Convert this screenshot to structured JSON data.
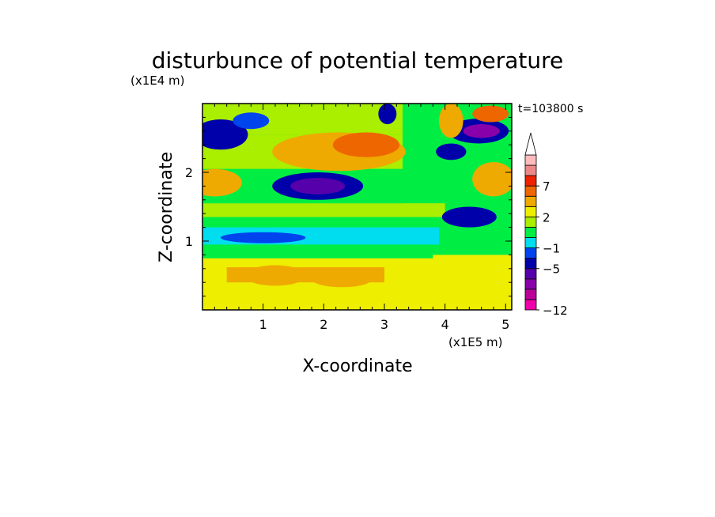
{
  "chart_data": {
    "type": "heatmap",
    "title": "disturbunce of potential temperature",
    "time_label": "t=103800 s",
    "xlabel": "X-coordinate",
    "ylabel": "Z-coordinate",
    "x_scale_label": "(x1E5 m)",
    "y_scale_label": "(x1E4 m)",
    "xlim": [
      0,
      5.1
    ],
    "ylim": [
      0,
      3.0
    ],
    "x_ticks": [
      1,
      2,
      3,
      4,
      5
    ],
    "y_ticks": [
      1,
      2
    ],
    "colorbar": {
      "levels": [
        -12,
        -10,
        -8,
        -6,
        -5,
        -3,
        -1,
        0,
        1,
        2,
        4,
        5,
        7,
        9,
        11
      ],
      "labels": [
        {
          "level": 7,
          "text": "7"
        },
        {
          "level": 2,
          "text": "2"
        },
        {
          "level": -1,
          "text": "−1"
        },
        {
          "level": -5,
          "text": "−5"
        },
        {
          "level": -12,
          "text": "−12"
        }
      ],
      "colors": [
        "#ee00aa",
        "#bb0099",
        "#8800aa",
        "#5500aa",
        "#0000aa",
        "#0044ee",
        "#00ddee",
        "#00ee44",
        "#aaee00",
        "#eeee00",
        "#eeaa00",
        "#ee6600",
        "#ee2200",
        "#ee8888",
        "#ffbbbb"
      ],
      "extend": "max"
    },
    "field": {
      "background_level": 0.5,
      "bands": [
        {
          "x": [
            0.0,
            5.1
          ],
          "z": [
            0.0,
            0.45
          ],
          "value": 2.2
        },
        {
          "x": [
            0.0,
            5.1
          ],
          "z": [
            0.35,
            0.8
          ],
          "value": 3.0
        },
        {
          "x": [
            0.4,
            3.0
          ],
          "z": [
            0.4,
            0.62
          ],
          "value": 4.2
        },
        {
          "x": [
            0.0,
            3.8
          ],
          "z": [
            0.75,
            0.95
          ],
          "value": 0.4
        },
        {
          "x": [
            0.0,
            3.9
          ],
          "z": [
            0.95,
            1.2
          ],
          "value": -0.5
        },
        {
          "x": [
            0.0,
            4.0
          ],
          "z": [
            1.35,
            1.55
          ],
          "value": 1.6
        },
        {
          "x": [
            0.0,
            3.3
          ],
          "z": [
            1.55,
            1.72
          ],
          "value": 0.8
        },
        {
          "x": [
            0.0,
            3.3
          ],
          "z": [
            2.05,
            2.55
          ],
          "value": 1.9
        },
        {
          "x": [
            0.0,
            3.3
          ],
          "z": [
            2.55,
            3.0
          ],
          "value": 1.7
        }
      ],
      "blobs": [
        {
          "x": 2.25,
          "z": 2.3,
          "rx": 1.1,
          "rz": 0.28,
          "value": 4.6
        },
        {
          "x": 2.7,
          "z": 2.4,
          "rx": 0.55,
          "rz": 0.18,
          "value": 5.6
        },
        {
          "x": 1.9,
          "z": 1.8,
          "rx": 0.75,
          "rz": 0.2,
          "value": -4.0
        },
        {
          "x": 1.9,
          "z": 1.8,
          "rx": 0.45,
          "rz": 0.12,
          "value": -5.2
        },
        {
          "x": 0.2,
          "z": 1.85,
          "rx": 0.45,
          "rz": 0.2,
          "value": 4.6
        },
        {
          "x": 0.3,
          "z": 2.55,
          "rx": 0.45,
          "rz": 0.22,
          "value": -3.5
        },
        {
          "x": 0.1,
          "z": 2.5,
          "rx": 0.15,
          "rz": 0.12,
          "value": -5.0
        },
        {
          "x": 0.8,
          "z": 2.75,
          "rx": 0.3,
          "rz": 0.12,
          "value": -1.8
        },
        {
          "x": 3.05,
          "z": 2.85,
          "rx": 0.15,
          "rz": 0.15,
          "value": -4.5
        },
        {
          "x": 1.2,
          "z": 0.5,
          "rx": 0.5,
          "rz": 0.15,
          "value": 4.6
        },
        {
          "x": 2.3,
          "z": 0.45,
          "rx": 0.5,
          "rz": 0.12,
          "value": 4.6
        },
        {
          "x": 1.0,
          "z": 1.05,
          "rx": 0.7,
          "rz": 0.08,
          "value": -1.5
        },
        {
          "x": 4.55,
          "z": 2.6,
          "rx": 0.5,
          "rz": 0.18,
          "value": -4.5
        },
        {
          "x": 4.6,
          "z": 2.6,
          "rx": 0.3,
          "rz": 0.1,
          "value": -6.5
        },
        {
          "x": 4.1,
          "z": 2.3,
          "rx": 0.25,
          "rz": 0.12,
          "value": -5.0
        },
        {
          "x": 4.4,
          "z": 1.35,
          "rx": 0.45,
          "rz": 0.15,
          "value": -3.5
        },
        {
          "x": 4.45,
          "z": 1.3,
          "rx": 0.2,
          "rz": 0.08,
          "value": -5.0
        },
        {
          "x": 4.1,
          "z": 2.75,
          "rx": 0.2,
          "rz": 0.25,
          "value": 4.5
        },
        {
          "x": 4.8,
          "z": 1.9,
          "rx": 0.35,
          "rz": 0.25,
          "value": 4.6
        },
        {
          "x": 4.75,
          "z": 2.85,
          "rx": 0.3,
          "rz": 0.12,
          "value": 5.0
        }
      ]
    }
  }
}
